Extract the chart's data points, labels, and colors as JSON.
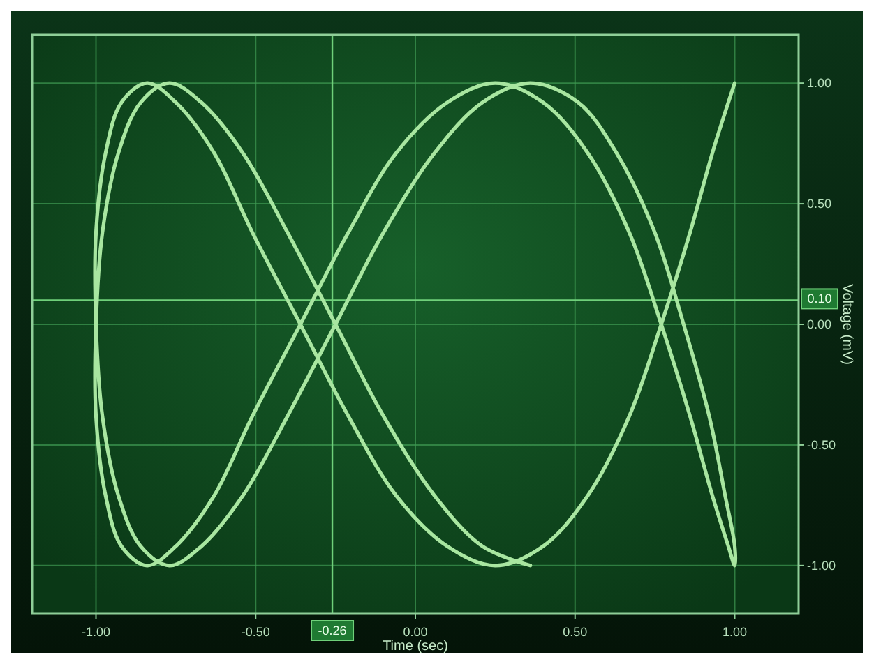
{
  "chart_data": {
    "type": "line",
    "xlabel": "Time (sec)",
    "ylabel": "Voltage (mV)",
    "xlim": [
      -1.2,
      1.2
    ],
    "ylim": [
      -1.2,
      1.2
    ],
    "xticks": [
      {
        "value": -1,
        "label": "-1.00"
      },
      {
        "value": -0.5,
        "label": "-0.50"
      },
      {
        "value": 0,
        "label": "0.00"
      },
      {
        "value": 0.5,
        "label": "0.50"
      },
      {
        "value": 1,
        "label": "1.00"
      }
    ],
    "yticks": [
      {
        "value": -1,
        "label": "-1.00"
      },
      {
        "value": -0.5,
        "label": "-0.50"
      },
      {
        "value": 0,
        "label": "0.00"
      },
      {
        "value": 0.5,
        "label": "0.50"
      },
      {
        "value": 1,
        "label": "1.00"
      }
    ],
    "grid": true,
    "marker": "none",
    "line_style": "solid",
    "ref_lines": [
      {
        "axis": "x",
        "value": -0.26,
        "label": "-0.26",
        "color": "#6fd07a"
      },
      {
        "axis": "y",
        "value": 0.1,
        "label": "0.10",
        "color": "#6fd07a"
      }
    ],
    "series": [
      {
        "color": "#a8e6a0",
        "x": [
          1.0,
          0.98,
          0.93,
          0.86,
          0.77,
          0.67,
          0.54,
          0.4,
          0.25,
          0.1,
          -0.06,
          -0.21,
          -0.36,
          -0.51,
          -0.63,
          -0.75,
          -0.84,
          -0.92,
          -0.97,
          -1.0,
          -1.0,
          -0.98,
          -0.93,
          -0.86,
          -0.77,
          -0.67,
          -0.54,
          -0.4,
          -0.25,
          -0.1,
          0.06,
          0.21,
          0.36,
          0.51,
          0.63,
          0.75,
          0.84,
          0.92,
          0.97,
          1.0,
          1.0,
          0.98,
          0.93,
          0.86,
          0.77,
          0.67,
          0.54,
          0.4,
          0.25,
          0.1,
          -0.06,
          -0.21,
          -0.36,
          -0.51,
          -0.63,
          -0.75,
          -0.84,
          -0.92,
          -0.97,
          -1.0,
          -1.0,
          -0.98,
          -0.93,
          -0.86,
          -0.77,
          -0.67,
          -0.54,
          -0.4,
          -0.25,
          -0.1,
          0.06,
          0.21,
          0.36
        ],
        "values": [
          1.0,
          0.92,
          0.71,
          0.38,
          0,
          -0.38,
          -0.71,
          -0.92,
          -1.0,
          -0.92,
          -0.71,
          -0.38,
          0,
          0.38,
          0.71,
          0.92,
          1.0,
          0.92,
          0.71,
          0.38,
          0,
          -0.38,
          -0.71,
          -0.92,
          -1.0,
          -0.92,
          -0.71,
          -0.38,
          0,
          0.38,
          0.71,
          0.92,
          1.0,
          0.92,
          0.71,
          0.38,
          0,
          -0.38,
          -0.71,
          -0.92,
          -1.0,
          -0.92,
          -0.71,
          -0.38,
          0,
          0.38,
          0.71,
          0.92,
          1.0,
          0.92,
          0.71,
          0.38,
          0,
          -0.38,
          -0.71,
          -0.92,
          -1.0,
          -0.92,
          -0.71,
          -0.38,
          0,
          0.38,
          0.71,
          0.92,
          1.0,
          0.92,
          0.71,
          0.38,
          0,
          -0.38,
          -0.71,
          -0.92,
          -1.0
        ]
      }
    ]
  }
}
